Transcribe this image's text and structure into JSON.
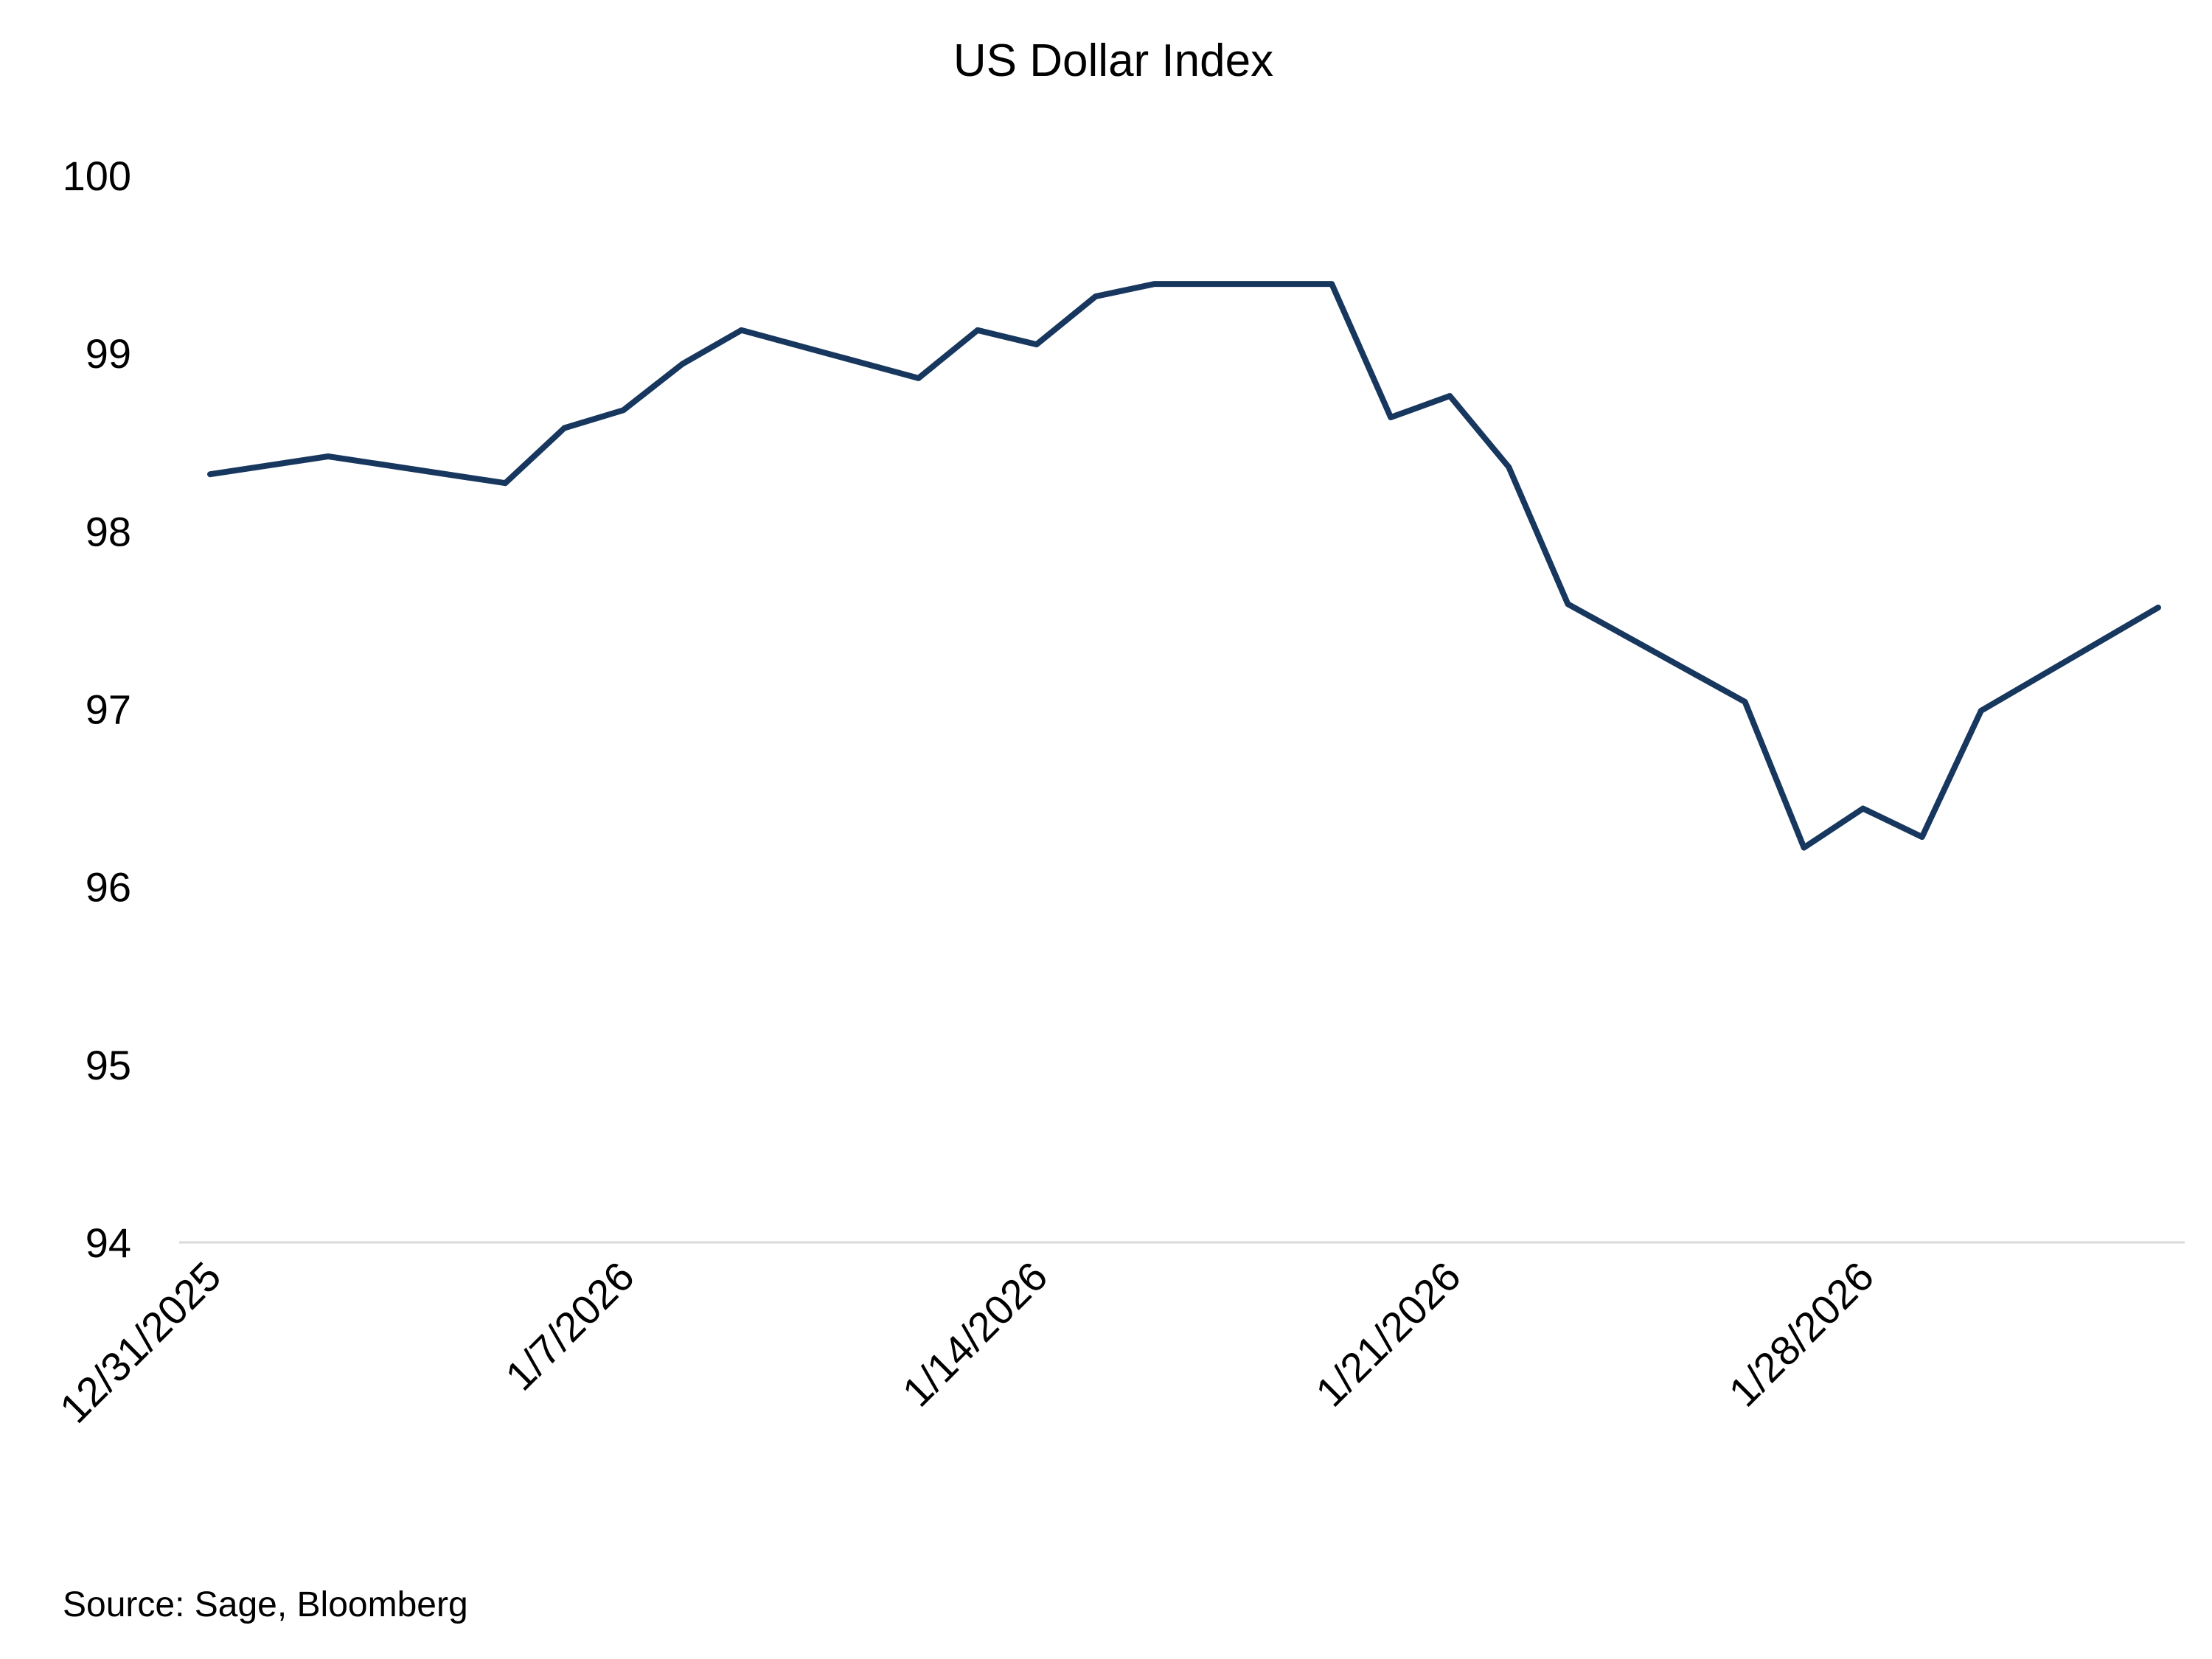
{
  "chart_data": {
    "type": "line",
    "title": "US Dollar Index",
    "xlabel": "",
    "ylabel": "",
    "ylim": [
      94,
      100
    ],
    "grid": false,
    "legend": "none",
    "y_ticks": [
      "94",
      "95",
      "96",
      "97",
      "98",
      "99",
      "100"
    ],
    "x_tick_labels": [
      "12/31/2025",
      "1/7/2026",
      "1/14/2026",
      "1/21/2026",
      "1/28/2026"
    ],
    "x_tick_days": [
      0,
      7,
      14,
      21,
      28
    ],
    "x_range_days": [
      0,
      33
    ],
    "series": [
      {
        "name": "US Dollar Index",
        "color": "#17375E",
        "days": [
          0,
          2,
          5,
          6,
          7,
          8,
          9,
          12,
          13,
          14,
          15,
          16,
          19,
          20,
          21,
          22,
          23,
          26,
          27,
          28,
          29,
          30,
          33
        ],
        "values": [
          98.32,
          98.42,
          98.27,
          98.58,
          98.68,
          98.94,
          99.13,
          98.86,
          99.13,
          99.05,
          99.32,
          99.39,
          99.39,
          98.64,
          98.76,
          98.36,
          97.59,
          97.04,
          96.22,
          96.44,
          96.28,
          96.99,
          97.57
        ]
      }
    ],
    "source": "Source: Sage, Bloomberg"
  }
}
